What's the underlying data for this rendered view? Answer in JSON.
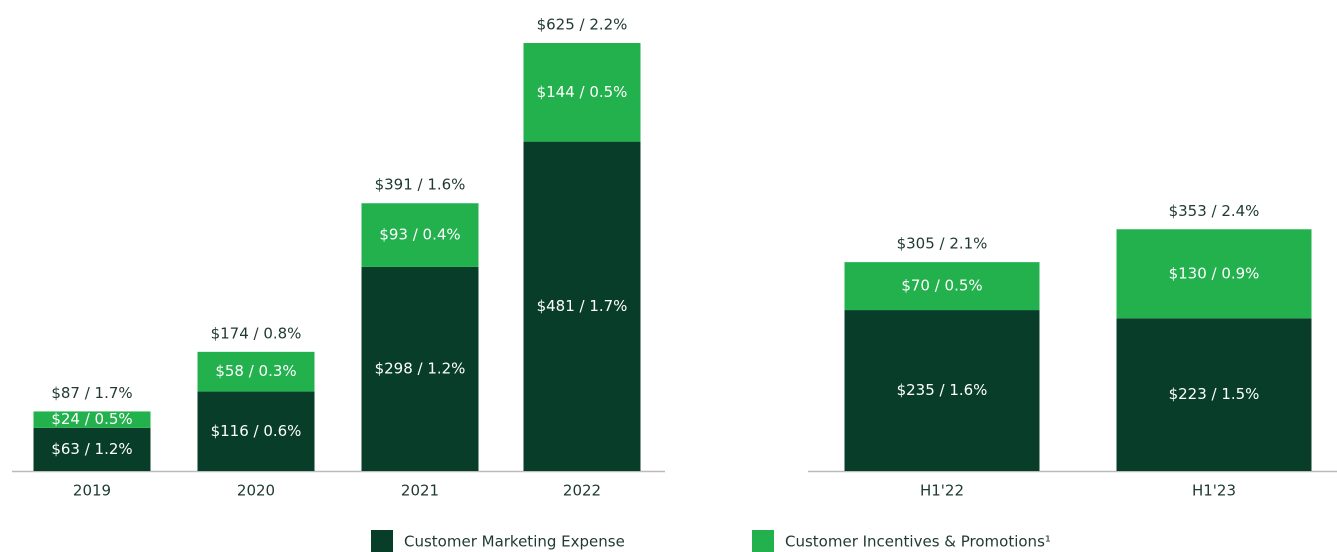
{
  "chart_data": [
    {
      "type": "stacked_bar",
      "categories": [
        "2019",
        "2020",
        "2021",
        "2022"
      ],
      "series": [
        {
          "name": "Customer Marketing Expense",
          "color": "#083d2a",
          "values": [
            63,
            116,
            298,
            481
          ],
          "value_labels": [
            "$63 / 1.2%",
            "$116 / 0.6%",
            "$298 / 1.2%",
            "$481 / 1.7%"
          ]
        },
        {
          "name": "Customer Incentives & Promotions¹",
          "color": "#22b14c",
          "values": [
            24,
            58,
            93,
            144
          ],
          "value_labels": [
            "$24 / 0.5%",
            "$58 / 0.3%",
            "$93 / 0.4%",
            "$144 / 0.5%"
          ]
        }
      ],
      "totals": [
        87,
        174,
        391,
        625
      ],
      "total_labels": [
        "$87 / 1.7%",
        "$174 / 0.8%",
        "$391 / 1.6%",
        "$625 / 2.2%"
      ]
    },
    {
      "type": "stacked_bar",
      "categories": [
        "H1'22",
        "H1'23"
      ],
      "series": [
        {
          "values": [
            235,
            223
          ],
          "value_labels": [
            "$235 / 1.6%",
            "$223 / 1.5%"
          ]
        },
        {
          "values": [
            70,
            130
          ],
          "value_labels": [
            "$70 / 0.5%",
            "$130 / 0.9%"
          ]
        }
      ],
      "totals": [
        305,
        353
      ],
      "total_labels": [
        "$305 / 2.1%",
        "$353 / 2.4%"
      ]
    }
  ]
}
